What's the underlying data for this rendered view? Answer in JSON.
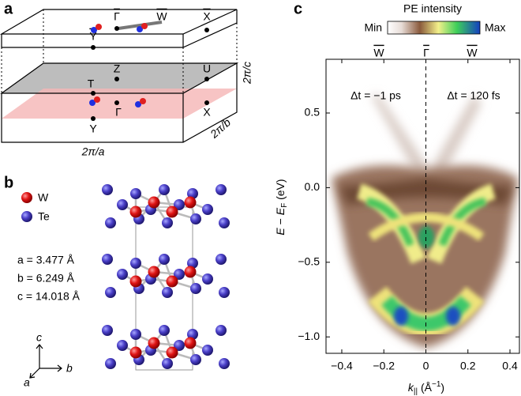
{
  "panel_a": {
    "label": "a",
    "points": {
      "gamma_bar": "Γ",
      "w_bar": "W",
      "x_bar": "X",
      "y_bar": "Y",
      "z": "Z",
      "u": "U",
      "t": "T",
      "gamma": "Γ",
      "x": "X",
      "y": "Y"
    },
    "dims": {
      "a": "2π/a",
      "b": "2π/b",
      "c": "2π/c"
    }
  },
  "panel_b": {
    "label": "b",
    "legend": [
      "W",
      "Te"
    ],
    "lattice": [
      "a = 3.477 Å",
      "b = 6.249 Å",
      "c = 14.018 Å"
    ],
    "axes": [
      "a",
      "b",
      "c"
    ]
  },
  "panel_c": {
    "label": "c",
    "colorbar": {
      "title": "PE intensity",
      "min": "Min",
      "max": "Max"
    },
    "symmetry_points": [
      "W",
      "Γ",
      "W"
    ],
    "annotations": [
      "Δt = −1 ps",
      "Δt = 120 fs"
    ],
    "y_label": [
      "E",
      " − ",
      "E",
      "F",
      " (eV)"
    ],
    "x_label": [
      "k",
      "||",
      " (Å",
      "−1",
      ")"
    ],
    "xlim": [
      -0.475,
      0.445
    ],
    "ylim": [
      -1.11,
      0.86
    ],
    "xticks": [
      {
        "value": -0.4,
        "label": "−0.4"
      },
      {
        "value": -0.2,
        "label": "−0.2"
      },
      0,
      0.2,
      0.4
    ],
    "yticks": [
      0.5,
      {
        "value": 0,
        "label": "0.0"
      },
      {
        "value": -0.5,
        "label": "−0.5"
      },
      {
        "value": -1,
        "label": "−1.0"
      }
    ]
  }
}
